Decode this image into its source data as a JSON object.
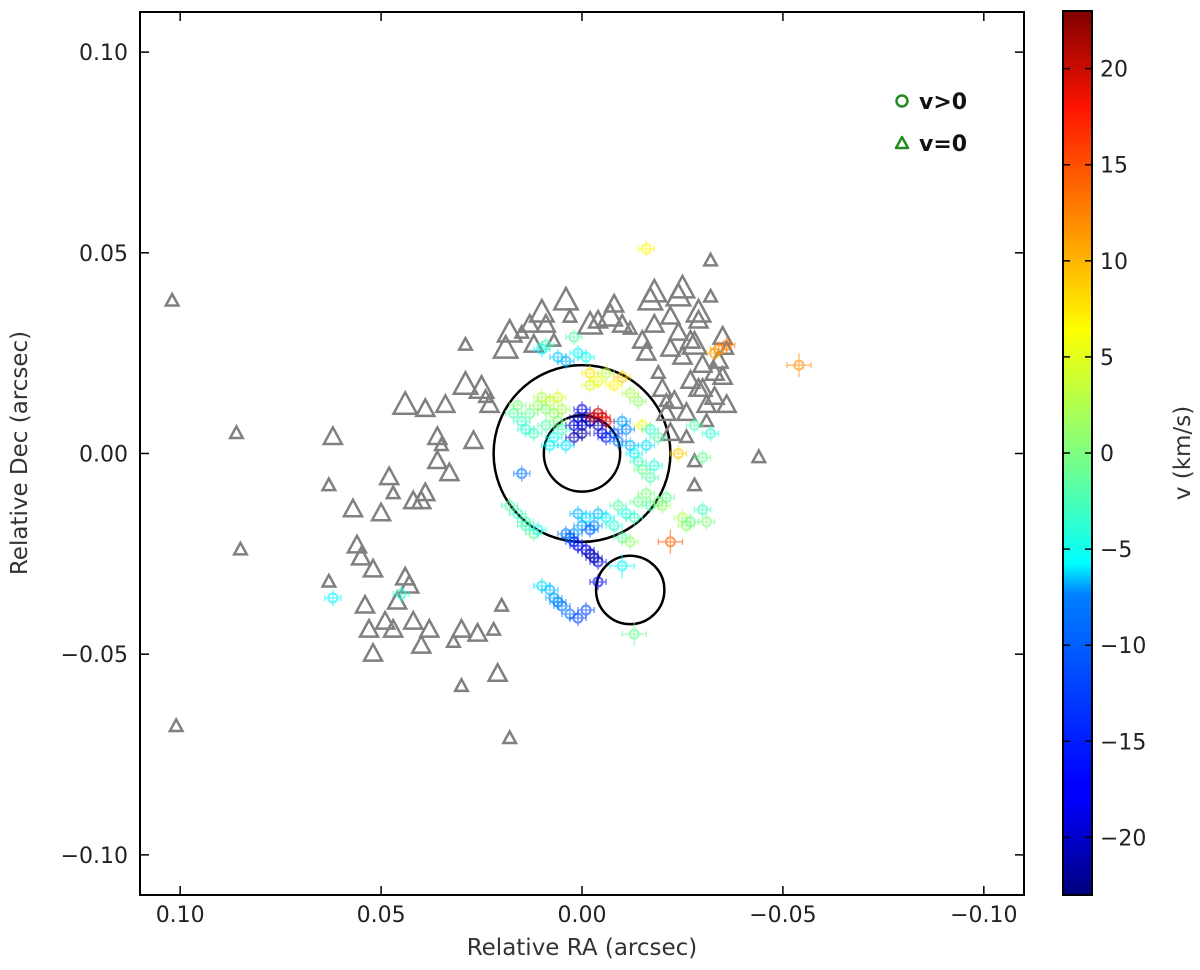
{
  "chart_data": {
    "type": "scatter",
    "title": "",
    "xlabel": "Relative RA (arcsec)",
    "ylabel": "Relative Dec (arcsec)",
    "xlim": [
      0.11,
      -0.11
    ],
    "ylim": [
      -0.11,
      0.11
    ],
    "x_inverted": true,
    "grid": false,
    "xticks": [
      0.1,
      0.05,
      0.0,
      -0.05,
      -0.1
    ],
    "xtick_labels": [
      "0.10",
      "0.05",
      "0.00",
      "−0.05",
      "−0.10"
    ],
    "yticks": [
      0.1,
      0.05,
      0.0,
      -0.05,
      -0.1
    ],
    "ytick_labels": [
      "0.10",
      "0.05",
      "0.00",
      "−0.05",
      "−0.10"
    ],
    "legend": {
      "placement": "top-right",
      "entries": [
        {
          "label": "v>0",
          "marker": "circle",
          "color": "#228B22"
        },
        {
          "label": "v=0",
          "marker": "triangle",
          "color": "#228B22"
        }
      ]
    },
    "colorbar": {
      "label": "v (km/s)",
      "range": [
        -23,
        23
      ],
      "colormap": "jet",
      "ticks": [
        20,
        15,
        10,
        5,
        0,
        -5,
        -10,
        -15,
        -20
      ],
      "tick_labels": [
        "20",
        "15",
        "10",
        "5",
        "0",
        "−5",
        "−10",
        "−15",
        "−20"
      ]
    },
    "rings": [
      {
        "name": "large-ring",
        "cx": 0.0,
        "cy": 0.0,
        "r": 0.022
      },
      {
        "name": "small-ring",
        "cx": 0.0,
        "cy": 0.0,
        "r": 0.0095
      },
      {
        "name": "offset-ring",
        "cx": -0.012,
        "cy": -0.034,
        "r": 0.0085
      }
    ],
    "triangle_series": {
      "name": "v=0",
      "color": "#808080",
      "points": [
        [
          0.102,
          0.038,
          1
        ],
        [
          0.101,
          -0.068,
          1
        ],
        [
          0.086,
          0.005,
          1
        ],
        [
          0.085,
          -0.024,
          1
        ],
        [
          0.062,
          0.004,
          2
        ],
        [
          0.063,
          -0.008,
          1
        ],
        [
          0.063,
          -0.032,
          1
        ],
        [
          0.057,
          -0.014,
          2
        ],
        [
          0.056,
          -0.023,
          2
        ],
        [
          0.055,
          -0.026,
          2
        ],
        [
          0.054,
          -0.038,
          2
        ],
        [
          0.053,
          -0.044,
          2
        ],
        [
          0.052,
          -0.05,
          2
        ],
        [
          0.052,
          -0.029,
          2
        ],
        [
          0.05,
          -0.015,
          2
        ],
        [
          0.049,
          -0.042,
          2
        ],
        [
          0.048,
          -0.006,
          2
        ],
        [
          0.047,
          -0.044,
          2
        ],
        [
          0.047,
          -0.01,
          1
        ],
        [
          0.046,
          -0.037,
          2
        ],
        [
          0.044,
          0.012,
          3
        ],
        [
          0.044,
          -0.031,
          2
        ],
        [
          0.043,
          -0.033,
          2
        ],
        [
          0.042,
          -0.042,
          2
        ],
        [
          0.042,
          -0.012,
          2
        ],
        [
          0.04,
          -0.012,
          2
        ],
        [
          0.04,
          -0.048,
          2
        ],
        [
          0.039,
          -0.01,
          2
        ],
        [
          0.039,
          0.011,
          2
        ],
        [
          0.038,
          -0.044,
          2
        ],
        [
          0.036,
          0.004,
          2
        ],
        [
          0.036,
          -0.002,
          2
        ],
        [
          0.035,
          0.002,
          1
        ],
        [
          0.034,
          0.012,
          2
        ],
        [
          0.033,
          -0.005,
          2
        ],
        [
          0.032,
          -0.047,
          1
        ],
        [
          0.03,
          -0.044,
          2
        ],
        [
          0.03,
          -0.058,
          1
        ],
        [
          0.029,
          0.017,
          3
        ],
        [
          0.029,
          0.027,
          1
        ],
        [
          0.027,
          0.003,
          2
        ],
        [
          0.026,
          -0.045,
          2
        ],
        [
          0.025,
          0.016,
          3
        ],
        [
          0.024,
          0.014,
          1
        ],
        [
          0.023,
          0.012,
          2
        ],
        [
          0.022,
          -0.044,
          1
        ],
        [
          0.021,
          -0.055,
          2
        ],
        [
          0.02,
          -0.038,
          1
        ],
        [
          0.019,
          0.026,
          3
        ],
        [
          0.018,
          0.03,
          3
        ],
        [
          0.018,
          -0.071,
          1
        ],
        [
          0.015,
          0.03,
          1
        ],
        [
          0.013,
          0.032,
          2
        ],
        [
          0.012,
          0.027,
          2
        ],
        [
          0.01,
          0.035,
          3
        ],
        [
          0.009,
          0.032,
          2
        ],
        [
          0.007,
          0.028,
          1
        ],
        [
          0.004,
          0.038,
          3
        ],
        [
          0.003,
          0.034,
          1
        ],
        [
          -0.002,
          0.032,
          3
        ],
        [
          -0.004,
          0.033,
          2
        ],
        [
          -0.007,
          0.034,
          3
        ],
        [
          -0.008,
          0.037,
          2
        ],
        [
          -0.01,
          0.032,
          2
        ],
        [
          -0.012,
          0.031,
          1
        ],
        [
          -0.015,
          0.028,
          2
        ],
        [
          -0.016,
          0.025,
          2
        ],
        [
          -0.017,
          0.038,
          3
        ],
        [
          -0.018,
          0.04,
          3
        ],
        [
          -0.018,
          0.032,
          2
        ],
        [
          -0.019,
          0.02,
          1
        ],
        [
          -0.02,
          0.016,
          2
        ],
        [
          -0.021,
          0.013,
          1
        ],
        [
          -0.021,
          0.01,
          2
        ],
        [
          -0.022,
          0.034,
          2
        ],
        [
          -0.022,
          0.026,
          2
        ],
        [
          -0.022,
          0.005,
          2
        ],
        [
          -0.023,
          0.013,
          2
        ],
        [
          -0.024,
          0.03,
          2
        ],
        [
          -0.024,
          0.039,
          3
        ],
        [
          -0.025,
          0.041,
          3
        ],
        [
          -0.025,
          0.024,
          2
        ],
        [
          -0.026,
          0.01,
          2
        ],
        [
          -0.026,
          0.004,
          1
        ],
        [
          -0.027,
          0.018,
          2
        ],
        [
          -0.027,
          0.028,
          2
        ],
        [
          -0.028,
          0.027,
          3
        ],
        [
          -0.028,
          -0.002,
          1
        ],
        [
          -0.028,
          -0.008,
          1
        ],
        [
          -0.029,
          0.016,
          2
        ],
        [
          -0.029,
          0.035,
          3
        ],
        [
          -0.029,
          0.033,
          2
        ],
        [
          -0.03,
          0.022,
          2
        ],
        [
          -0.03,
          0.016,
          2
        ],
        [
          -0.031,
          0.012,
          2
        ],
        [
          -0.031,
          0.008,
          1
        ],
        [
          -0.032,
          0.039,
          1
        ],
        [
          -0.032,
          0.048,
          1
        ],
        [
          -0.033,
          0.02,
          2
        ],
        [
          -0.033,
          0.014,
          2
        ],
        [
          -0.034,
          0.023,
          2
        ],
        [
          -0.035,
          0.019,
          2
        ],
        [
          -0.035,
          0.029,
          2
        ],
        [
          -0.036,
          0.026,
          1
        ],
        [
          -0.036,
          0.012,
          2
        ],
        [
          -0.044,
          -0.001,
          1
        ]
      ]
    },
    "circle_series": {
      "name": "v>0",
      "colormap": "jet",
      "points": [
        [
          -0.016,
          0.051,
          6,
          0.002
        ],
        [
          -0.054,
          0.022,
          11,
          0.003
        ],
        [
          -0.036,
          0.027,
          12,
          0.002
        ],
        [
          -0.034,
          0.026,
          11,
          0.002
        ],
        [
          -0.033,
          0.025,
          10,
          0.002
        ],
        [
          -0.022,
          -0.022,
          13,
          0.003
        ],
        [
          0.062,
          -0.036,
          -6,
          0.002
        ],
        [
          0.045,
          -0.035,
          -4,
          0.002
        ],
        [
          0.015,
          -0.005,
          -12,
          0.002
        ],
        [
          0.018,
          -0.013,
          -2,
          0.002
        ],
        [
          0.016,
          -0.015,
          -3,
          0.002
        ],
        [
          0.014,
          -0.017,
          -2,
          0.002
        ],
        [
          0.014,
          -0.018,
          -3,
          0.002
        ],
        [
          0.012,
          -0.02,
          -1,
          0.002
        ],
        [
          0.011,
          -0.019,
          -5,
          0.002
        ],
        [
          0.01,
          -0.033,
          -7,
          0.002
        ],
        [
          0.008,
          -0.034,
          -9,
          0.002
        ],
        [
          0.007,
          -0.036,
          -10,
          0.002
        ],
        [
          0.006,
          -0.037,
          -11,
          0.002
        ],
        [
          0.005,
          -0.038,
          -12,
          0.002
        ],
        [
          0.003,
          -0.04,
          -12,
          0.002
        ],
        [
          0.001,
          -0.041,
          -14,
          0.002
        ],
        [
          -0.001,
          -0.039,
          -14,
          0.002
        ],
        [
          -0.004,
          -0.032,
          -18,
          0.002
        ],
        [
          -0.01,
          -0.028,
          -6,
          0.003
        ],
        [
          -0.013,
          -0.045,
          -1,
          0.003
        ],
        [
          -0.017,
          -0.013,
          -2,
          0.002
        ],
        [
          -0.019,
          -0.012,
          0,
          0.002
        ],
        [
          -0.02,
          -0.013,
          1,
          0.002
        ],
        [
          -0.021,
          -0.011,
          -1,
          0.002
        ],
        [
          -0.025,
          -0.016,
          2,
          0.002
        ],
        [
          -0.026,
          -0.018,
          1,
          0.002
        ],
        [
          -0.027,
          -0.017,
          -1,
          0.002
        ],
        [
          -0.03,
          -0.014,
          -3,
          0.002
        ],
        [
          -0.031,
          -0.017,
          0,
          0.002
        ],
        [
          -0.028,
          0.007,
          -2,
          0.002
        ],
        [
          -0.032,
          0.005,
          -4,
          0.002
        ],
        [
          -0.03,
          -0.001,
          -1,
          0.002
        ],
        [
          -0.024,
          0.0,
          8,
          0.002
        ],
        [
          0.017,
          0.01,
          -2,
          0.002
        ],
        [
          0.016,
          0.012,
          0,
          0.002
        ],
        [
          0.015,
          0.008,
          -3,
          0.002
        ],
        [
          0.014,
          0.006,
          -4,
          0.002
        ],
        [
          0.013,
          0.01,
          -1,
          0.002
        ],
        [
          0.012,
          0.005,
          -3,
          0.002
        ],
        [
          0.011,
          0.012,
          1,
          0.002
        ],
        [
          0.01,
          0.014,
          2,
          0.002
        ],
        [
          0.009,
          0.011,
          0,
          0.002
        ],
        [
          0.009,
          0.007,
          -2,
          0.002
        ],
        [
          0.008,
          0.013,
          3,
          0.002
        ],
        [
          0.008,
          0.002,
          -6,
          0.002
        ],
        [
          0.007,
          0.01,
          1,
          0.002
        ],
        [
          0.007,
          0.004,
          -5,
          0.002
        ],
        [
          0.006,
          0.014,
          4,
          0.002
        ],
        [
          0.006,
          0.008,
          0,
          0.002
        ],
        [
          0.005,
          0.011,
          2,
          0.002
        ],
        [
          0.005,
          0.006,
          -3,
          0.002
        ],
        [
          0.004,
          0.002,
          -7,
          0.002
        ],
        [
          0.01,
          0.026,
          -6,
          0.002
        ],
        [
          0.009,
          0.027,
          -3,
          0.002
        ],
        [
          0.006,
          0.024,
          -8,
          0.002
        ],
        [
          0.004,
          0.023,
          -9,
          0.002
        ],
        [
          0.002,
          0.029,
          -2,
          0.002
        ],
        [
          0.001,
          0.025,
          -6,
          0.002
        ],
        [
          -0.001,
          0.024,
          -5,
          0.002
        ],
        [
          -0.002,
          0.02,
          7,
          0.002
        ],
        [
          -0.002,
          0.017,
          4,
          0.002
        ],
        [
          -0.004,
          0.018,
          5,
          0.002
        ],
        [
          -0.006,
          0.02,
          3,
          0.002
        ],
        [
          -0.008,
          0.017,
          6,
          0.002
        ],
        [
          -0.01,
          0.019,
          8,
          0.002
        ],
        [
          -0.012,
          0.015,
          2,
          0.002
        ],
        [
          -0.014,
          0.013,
          1,
          0.002
        ],
        [
          -0.015,
          0.007,
          5,
          0.002
        ],
        [
          -0.017,
          0.006,
          -4,
          0.002
        ],
        [
          -0.019,
          0.004,
          -2,
          0.002
        ],
        [
          0.0,
          0.011,
          -18,
          0.002
        ],
        [
          -0.001,
          0.009,
          -20,
          0.002
        ],
        [
          0.001,
          0.009,
          -21,
          0.002
        ],
        [
          0.002,
          0.007,
          -19,
          0.002
        ],
        [
          0.0,
          0.007,
          -17,
          0.002
        ],
        [
          -0.002,
          0.008,
          -22,
          0.002
        ],
        [
          -0.003,
          0.009,
          18,
          0.002
        ],
        [
          -0.004,
          0.01,
          20,
          0.002
        ],
        [
          -0.005,
          0.009,
          19,
          0.002
        ],
        [
          -0.006,
          0.008,
          17,
          0.002
        ],
        [
          -0.004,
          0.007,
          -20,
          0.002
        ],
        [
          -0.005,
          0.005,
          -18,
          0.002
        ],
        [
          -0.006,
          0.004,
          -16,
          0.002
        ],
        [
          -0.008,
          0.005,
          -14,
          0.002
        ],
        [
          -0.009,
          0.003,
          -12,
          0.002
        ],
        [
          -0.01,
          0.008,
          -10,
          0.002
        ],
        [
          -0.011,
          0.006,
          -11,
          0.002
        ],
        [
          -0.012,
          0.002,
          -9,
          0.002
        ],
        [
          -0.013,
          0.0,
          -6,
          0.002
        ],
        [
          -0.014,
          -0.002,
          -3,
          0.002
        ],
        [
          -0.015,
          -0.004,
          -1,
          0.002
        ],
        [
          -0.017,
          -0.006,
          -2,
          0.002
        ],
        [
          -0.018,
          -0.003,
          -4,
          0.002
        ],
        [
          -0.016,
          0.002,
          -7,
          0.002
        ],
        [
          0.001,
          -0.015,
          -9,
          0.002
        ],
        [
          -0.001,
          -0.016,
          -7,
          0.002
        ],
        [
          0.0,
          -0.018,
          -10,
          0.002
        ],
        [
          0.002,
          -0.02,
          -11,
          0.002
        ],
        [
          0.003,
          -0.021,
          -13,
          0.002
        ],
        [
          0.004,
          -0.02,
          -12,
          0.002
        ],
        [
          0.002,
          -0.022,
          -15,
          0.002
        ],
        [
          0.001,
          -0.023,
          -17,
          0.002
        ],
        [
          -0.001,
          -0.024,
          -18,
          0.002
        ],
        [
          -0.002,
          -0.025,
          -20,
          0.002
        ],
        [
          -0.003,
          -0.026,
          -21,
          0.002
        ],
        [
          -0.004,
          -0.027,
          -19,
          0.002
        ],
        [
          -0.002,
          -0.019,
          -13,
          0.002
        ],
        [
          -0.003,
          -0.018,
          -11,
          0.002
        ],
        [
          -0.004,
          -0.015,
          -9,
          0.002
        ],
        [
          -0.006,
          -0.016,
          -6,
          0.002
        ],
        [
          -0.008,
          -0.018,
          -4,
          0.002
        ],
        [
          -0.009,
          -0.013,
          -2,
          0.002
        ],
        [
          -0.011,
          -0.015,
          -5,
          0.002
        ],
        [
          -0.013,
          -0.016,
          -3,
          0.002
        ],
        [
          -0.014,
          -0.012,
          -1,
          0.002
        ],
        [
          -0.016,
          -0.01,
          0,
          0.002
        ],
        [
          -0.01,
          -0.021,
          -2,
          0.002
        ],
        [
          -0.012,
          -0.022,
          1,
          0.002
        ],
        [
          0.0,
          0.005,
          -22,
          0.002
        ],
        [
          0.002,
          0.004,
          -20,
          0.002
        ]
      ]
    }
  }
}
